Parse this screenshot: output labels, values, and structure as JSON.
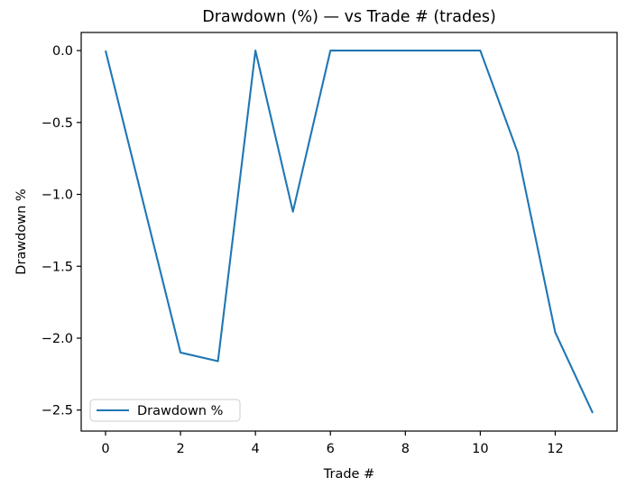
{
  "chart_data": {
    "type": "line",
    "title": "Drawdown (%) — vs Trade # (trades)",
    "xlabel": "Trade #",
    "ylabel": "Drawdown %",
    "x": [
      0,
      1,
      2,
      3,
      4,
      5,
      6,
      7,
      8,
      9,
      10,
      11,
      12,
      13
    ],
    "series": [
      {
        "name": "Drawdown %",
        "color": "#1f77b4",
        "values": [
          0.0,
          -1.05,
          -2.1,
          -2.16,
          0.0,
          -1.12,
          0.0,
          0.0,
          0.0,
          0.0,
          0.0,
          -0.71,
          -1.96,
          -2.52
        ]
      }
    ],
    "xlim": [
      -0.65,
      13.65
    ],
    "ylim": [
      -2.646,
      0.126
    ],
    "xticks": [
      0,
      2,
      4,
      6,
      8,
      10,
      12
    ],
    "xtick_labels": [
      "0",
      "2",
      "4",
      "6",
      "8",
      "10",
      "12"
    ],
    "yticks": [
      0.0,
      -0.5,
      -1.0,
      -1.5,
      -2.0,
      -2.5
    ],
    "ytick_labels": [
      "0.0",
      "−0.5",
      "−1.0",
      "−1.5",
      "−2.0",
      "−2.5"
    ],
    "grid": false,
    "legend": {
      "label": "Drawdown %",
      "position": "lower left"
    },
    "background_color": "#ffffff",
    "line_color": "#1f77b4"
  }
}
